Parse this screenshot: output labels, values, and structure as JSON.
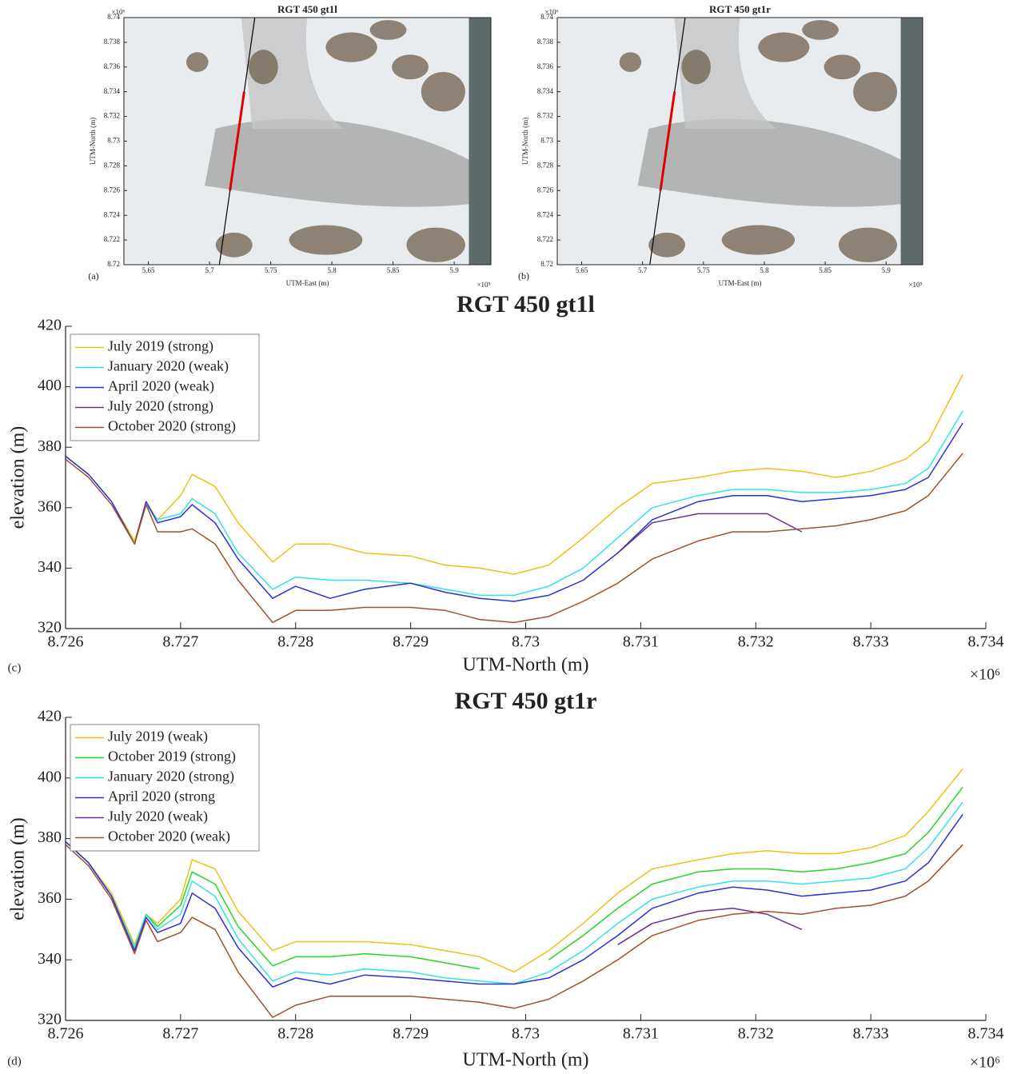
{
  "chart_data": [
    {
      "type": "map",
      "title": "RGT 450 gt1l",
      "panel_label": "(a)",
      "xlabel": "UTM-East (m)",
      "ylabel": "UTM-North (m)",
      "x_exponent": "×10⁵",
      "y_exponent": "×10⁶",
      "xlim": [
        5.63,
        5.93
      ],
      "xticks": [
        5.65,
        5.7,
        5.75,
        5.8,
        5.85,
        5.9
      ],
      "ylim": [
        8.72,
        8.74
      ],
      "yticks": [
        8.72,
        8.722,
        8.724,
        8.726,
        8.728,
        8.73,
        8.732,
        8.734,
        8.736,
        8.738,
        8.74
      ],
      "track": {
        "x": [
          5.708,
          5.737
        ],
        "y": [
          8.72,
          8.74
        ],
        "color": "#000000"
      },
      "highlight": {
        "y": [
          8.726,
          8.734
        ],
        "color": "#e00000"
      }
    },
    {
      "type": "map",
      "title": "RGT 450 gt1r",
      "panel_label": "(b)",
      "xlabel": "UTM-East (m)",
      "ylabel": "UTM-North (m)",
      "x_exponent": "×10⁵",
      "y_exponent": "×10⁶",
      "xlim": [
        5.63,
        5.93
      ],
      "xticks": [
        5.65,
        5.7,
        5.75,
        5.8,
        5.85,
        5.9
      ],
      "ylim": [
        8.72,
        8.74
      ],
      "yticks": [
        8.72,
        8.722,
        8.724,
        8.726,
        8.728,
        8.73,
        8.732,
        8.734,
        8.736,
        8.738,
        8.74
      ],
      "track": {
        "x": [
          5.706,
          5.735
        ],
        "y": [
          8.72,
          8.74
        ],
        "color": "#000000"
      },
      "highlight": {
        "y": [
          8.726,
          8.734
        ],
        "color": "#e00000"
      }
    },
    {
      "type": "line",
      "title": "RGT 450 gt1l",
      "panel_label": "(c)",
      "xlabel": "UTM-North (m)",
      "ylabel": "elevation (m)",
      "x_exponent": "×10⁶",
      "xlim": [
        8.726,
        8.734
      ],
      "xticks": [
        8.726,
        8.727,
        8.728,
        8.729,
        8.73,
        8.731,
        8.732,
        8.733,
        8.734
      ],
      "ylim": [
        320,
        420
      ],
      "yticks": [
        320,
        340,
        360,
        380,
        400,
        420
      ],
      "legend": "upper left",
      "x": [
        8.726,
        8.7262,
        8.7264,
        8.7266,
        8.7267,
        8.7268,
        8.727,
        8.7271,
        8.7273,
        8.7275,
        8.7278,
        8.728,
        8.7283,
        8.7286,
        8.729,
        8.7293,
        8.7296,
        8.7299,
        8.7302,
        8.7305,
        8.7308,
        8.7311,
        8.7315,
        8.7318,
        8.7321,
        8.7324,
        8.7327,
        8.733,
        8.7333,
        8.7335,
        8.7338
      ],
      "series": [
        {
          "name": "July 2019 (strong)",
          "color": "#ecc21a",
          "values": [
            377,
            371,
            362,
            349,
            362,
            356,
            364,
            371,
            367,
            355,
            342,
            348,
            348,
            345,
            344,
            341,
            340,
            338,
            341,
            350,
            360,
            368,
            370,
            372,
            373,
            372,
            370,
            372,
            376,
            382,
            404
          ]
        },
        {
          "name": "January 2020 (weak)",
          "color": "#33e3e3",
          "values": [
            377,
            371,
            362,
            348,
            361,
            356,
            358,
            363,
            358,
            345,
            333,
            337,
            336,
            336,
            335,
            333,
            331,
            331,
            334,
            340,
            350,
            360,
            364,
            366,
            366,
            365,
            365,
            366,
            368,
            373,
            392
          ]
        },
        {
          "name": "April 2020 (weak)",
          "color": "#2a2fe0",
          "values": [
            377,
            371,
            362,
            348,
            362,
            355,
            357,
            361,
            355,
            343,
            330,
            334,
            330,
            333,
            335,
            332,
            330,
            329,
            331,
            336,
            345,
            356,
            362,
            364,
            364,
            362,
            363,
            364,
            366,
            370,
            388
          ]
        },
        {
          "name": "July 2020 (strong)",
          "color": "#6a2d9e",
          "values": [
            null,
            null,
            null,
            null,
            null,
            null,
            null,
            null,
            null,
            null,
            null,
            null,
            null,
            null,
            null,
            null,
            null,
            null,
            null,
            null,
            345,
            355,
            358,
            358,
            358,
            352,
            null,
            null,
            null,
            null,
            null
          ]
        },
        {
          "name": "October 2020 (strong)",
          "color": "#a0522d",
          "values": [
            376,
            370,
            361,
            348,
            361,
            352,
            352,
            353,
            348,
            336,
            322,
            326,
            326,
            327,
            327,
            326,
            323,
            322,
            324,
            329,
            335,
            343,
            349,
            352,
            352,
            353,
            354,
            356,
            359,
            364,
            378
          ]
        }
      ]
    },
    {
      "type": "line",
      "title": "RGT 450 gt1r",
      "panel_label": "(d)",
      "xlabel": "UTM-North (m)",
      "ylabel": "elevation (m)",
      "x_exponent": "×10⁶",
      "xlim": [
        8.726,
        8.734
      ],
      "xticks": [
        8.726,
        8.727,
        8.728,
        8.729,
        8.73,
        8.731,
        8.732,
        8.733,
        8.734
      ],
      "ylim": [
        320,
        420
      ],
      "yticks": [
        320,
        340,
        360,
        380,
        400,
        420
      ],
      "legend": "upper left",
      "x": [
        8.726,
        8.7262,
        8.7264,
        8.7266,
        8.7267,
        8.7268,
        8.727,
        8.7271,
        8.7273,
        8.7275,
        8.7278,
        8.728,
        8.7283,
        8.7286,
        8.729,
        8.7293,
        8.7296,
        8.7299,
        8.7302,
        8.7305,
        8.7308,
        8.7311,
        8.7315,
        8.7318,
        8.7321,
        8.7324,
        8.7327,
        8.733,
        8.7333,
        8.7335,
        8.7338
      ],
      "series": [
        {
          "name": "July 2019 (weak)",
          "color": "#ecc21a",
          "values": [
            379,
            372,
            362,
            345,
            355,
            352,
            360,
            373,
            370,
            356,
            343,
            346,
            346,
            346,
            345,
            343,
            341,
            336,
            343,
            352,
            362,
            370,
            373,
            375,
            376,
            375,
            375,
            377,
            381,
            389,
            403
          ]
        },
        {
          "name": "October 2019 (strong)",
          "color": "#22d822",
          "values": [
            379,
            372,
            361,
            344,
            355,
            351,
            358,
            369,
            365,
            351,
            338,
            341,
            341,
            342,
            341,
            339,
            337,
            null,
            340,
            348,
            357,
            365,
            369,
            370,
            370,
            369,
            370,
            372,
            375,
            382,
            397
          ]
        },
        {
          "name": "January 2020 (strong)",
          "color": "#33e3e3",
          "values": [
            379,
            372,
            361,
            344,
            355,
            350,
            355,
            366,
            361,
            347,
            333,
            336,
            335,
            337,
            336,
            334,
            333,
            332,
            336,
            343,
            352,
            360,
            364,
            366,
            366,
            365,
            366,
            367,
            370,
            377,
            392
          ]
        },
        {
          "name": "April 2020 (strong",
          "color": "#2a2fe0",
          "values": [
            379,
            372,
            361,
            343,
            354,
            349,
            352,
            362,
            357,
            344,
            331,
            334,
            332,
            335,
            334,
            333,
            332,
            332,
            334,
            340,
            348,
            357,
            362,
            364,
            363,
            361,
            362,
            363,
            366,
            372,
            388
          ]
        },
        {
          "name": "July 2020 (weak)",
          "color": "#6a2d9e",
          "values": [
            null,
            null,
            null,
            null,
            null,
            null,
            null,
            null,
            null,
            null,
            null,
            null,
            null,
            null,
            null,
            null,
            null,
            null,
            null,
            null,
            345,
            352,
            356,
            357,
            355,
            350,
            null,
            null,
            null,
            null,
            null
          ]
        },
        {
          "name": "October 2020 (weak)",
          "color": "#a0522d",
          "values": [
            378,
            371,
            360,
            342,
            353,
            346,
            349,
            354,
            350,
            336,
            321,
            325,
            328,
            328,
            328,
            327,
            326,
            324,
            327,
            333,
            340,
            348,
            353,
            355,
            356,
            355,
            357,
            358,
            361,
            366,
            378
          ]
        }
      ]
    }
  ]
}
